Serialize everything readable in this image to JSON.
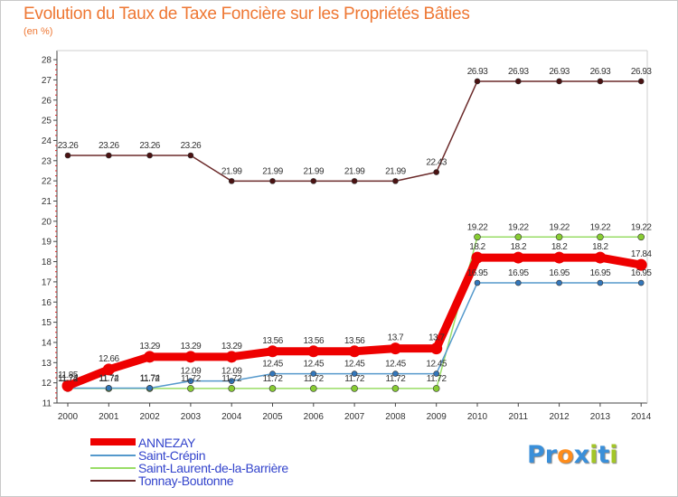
{
  "title": "Evolution du Taux de Taxe Foncière sur les Propriétés Bâties",
  "subtitle": "(en %)",
  "logo": {
    "text": "Proxiti",
    "letters": [
      "P",
      "r",
      "o",
      "x",
      "i",
      "t",
      "i"
    ],
    "colors": [
      "#3a8fd9",
      "#3a8fd9",
      "#ff8c1a",
      "#3a8fd9",
      "#a3c628",
      "#3a8fd9",
      "#a3c628"
    ]
  },
  "chart_data": {
    "type": "line",
    "title": "Evolution du Taux de Taxe Foncière sur les Propriétés Bâties",
    "ylabel": "(en %)",
    "ylim": [
      11,
      28
    ],
    "yticks": [
      11,
      12,
      13,
      14,
      15,
      16,
      17,
      18,
      19,
      20,
      21,
      22,
      23,
      24,
      25,
      26,
      27,
      28
    ],
    "categories": [
      "2000",
      "2001",
      "2002",
      "2003",
      "2004",
      "2005",
      "2006",
      "2007",
      "2008",
      "2009",
      "2010",
      "2011",
      "2012",
      "2013",
      "2014"
    ],
    "series": [
      {
        "name": "Tonnay-Boutonne",
        "color": "#6b2a2a",
        "dot": "#4a1212",
        "width": 1.5,
        "r": 3,
        "values": [
          23.26,
          23.26,
          23.26,
          23.26,
          21.99,
          21.99,
          21.99,
          21.99,
          21.99,
          22.43,
          26.93,
          26.93,
          26.93,
          26.93,
          26.93
        ],
        "labels": [
          "23.26",
          "23.26",
          "23.26",
          "23.26",
          "21.99",
          "21.99",
          "21.99",
          "21.99",
          "21.99",
          "22.43",
          "26.93",
          "26.93",
          "26.93",
          "26.93",
          "26.93"
        ]
      },
      {
        "name": "Saint-Laurent-de-la-Barrière",
        "color": "#99dd66",
        "dot": "#88cc33",
        "width": 1.5,
        "r": 3.5,
        "values": [
          11.72,
          11.72,
          11.72,
          11.72,
          11.72,
          11.72,
          11.72,
          11.72,
          11.72,
          11.72,
          19.22,
          19.22,
          19.22,
          19.22,
          19.22
        ],
        "labels": [
          "11.72",
          "11.72",
          "11.72",
          "11.72",
          "11.72",
          "11.72",
          "11.72",
          "11.72",
          "11.72",
          "11.72",
          "19.22",
          "19.22",
          "19.22",
          "19.22",
          "19.22"
        ]
      },
      {
        "name": "Saint-Crépin",
        "color": "#5599cc",
        "dot": "#3377bb",
        "width": 1.5,
        "r": 3,
        "values": [
          11.74,
          11.74,
          11.74,
          12.09,
          12.09,
          12.45,
          12.45,
          12.45,
          12.45,
          12.45,
          16.95,
          16.95,
          16.95,
          16.95,
          16.95
        ],
        "labels": [
          "11.74",
          "11.74",
          "11.74",
          "12.09",
          "12.09",
          "12.45",
          "12.45",
          "12.45",
          "12.45",
          "12.45",
          "16.95",
          "16.95",
          "16.95",
          "16.95",
          "16.95"
        ]
      },
      {
        "name": "ANNEZAY",
        "color": "#ee0000",
        "dot": "#ee0000",
        "width": 9,
        "r": 6.5,
        "values": [
          11.85,
          12.66,
          13.29,
          13.29,
          13.29,
          13.56,
          13.56,
          13.56,
          13.7,
          13.7,
          18.2,
          18.2,
          18.2,
          18.2,
          17.84
        ],
        "labels": [
          "11.85",
          "12.66",
          "13.29",
          "13.29",
          "13.29",
          "13.56",
          "13.56",
          "13.56",
          "13.7",
          "13.7",
          "18.2",
          "18.2",
          "18.2",
          "18.2",
          "17.84"
        ]
      }
    ],
    "legend": [
      "ANNEZAY",
      "Saint-Crépin",
      "Saint-Laurent-de-la-Barrière",
      "Tonnay-Boutonne"
    ],
    "legend_position": "bottom-left"
  }
}
